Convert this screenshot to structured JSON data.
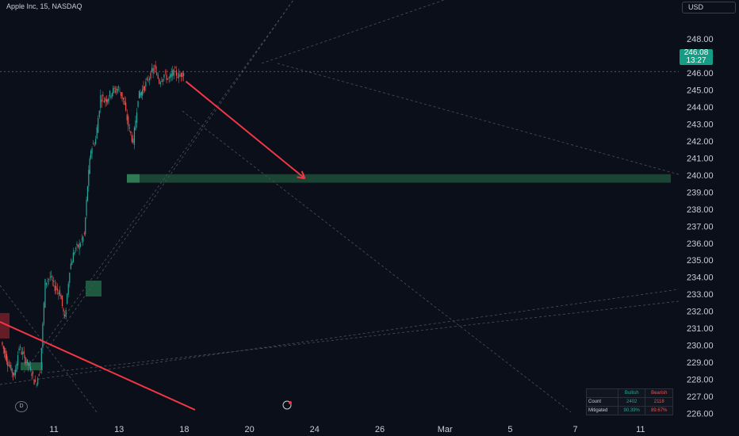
{
  "header": {
    "title": "Apple Inc, 15, NASDAQ",
    "currency": "USD"
  },
  "price_tag": {
    "price": "246.08",
    "countdown": "13:27"
  },
  "stats_table": {
    "headers": [
      "",
      "Bullish",
      "Bearish"
    ],
    "rows": [
      {
        "label": "Count",
        "bullish": "2402",
        "bearish": "2118"
      },
      {
        "label": "Mitigated",
        "bullish": "90.39%",
        "bearish": "89.67%"
      }
    ]
  },
  "toolbar": {
    "d_label": "D"
  },
  "colors": {
    "background": "#0b0f19",
    "bull": "#26a69a",
    "bear": "#ef5350",
    "arrow": "#f23645",
    "zone": "#1e4d3a",
    "price_tag": "#149d84"
  },
  "chart_data": {
    "type": "candlestick",
    "title": "Apple Inc, 15, NASDAQ",
    "y_ticks": [
      "226.00",
      "227.00",
      "228.00",
      "229.00",
      "230.00",
      "231.00",
      "232.00",
      "233.00",
      "234.00",
      "235.00",
      "236.00",
      "237.00",
      "238.00",
      "239.00",
      "240.00",
      "241.00",
      "242.00",
      "243.00",
      "244.00",
      "245.00",
      "246.00",
      "247.00",
      "248.00"
    ],
    "ylim": [
      225.3,
      248.9
    ],
    "x_ticks": [
      "11",
      "13",
      "18",
      "20",
      "24",
      "26",
      "Mar",
      "5",
      "7",
      "11"
    ],
    "x_tick_positions": [
      1.0,
      3.0,
      5.0,
      7.0,
      9.0,
      11.0,
      13.0,
      15.0,
      17.0,
      19.0
    ],
    "current_price": 246.08,
    "price_path": [
      [
        -0.6,
        230.2
      ],
      [
        -0.4,
        229.0
      ],
      [
        -0.2,
        228.2
      ],
      [
        -0.05,
        229.9
      ],
      [
        0.1,
        229.3
      ],
      [
        0.3,
        228.6
      ],
      [
        0.45,
        227.7
      ],
      [
        0.6,
        228.6
      ],
      [
        0.75,
        233.7
      ],
      [
        0.9,
        234.0
      ],
      [
        1.05,
        233.4
      ],
      [
        1.2,
        233.1
      ],
      [
        1.35,
        231.5
      ],
      [
        1.5,
        234.5
      ],
      [
        1.65,
        235.6
      ],
      [
        1.8,
        235.9
      ],
      [
        1.95,
        236.5
      ],
      [
        2.05,
        239.4
      ],
      [
        2.15,
        241.5
      ],
      [
        2.3,
        242.1
      ],
      [
        2.45,
        244.6
      ],
      [
        2.6,
        244.4
      ],
      [
        2.8,
        244.9
      ],
      [
        3.0,
        245.1
      ],
      [
        3.15,
        244.4
      ],
      [
        3.3,
        242.9
      ],
      [
        3.45,
        241.9
      ],
      [
        3.6,
        244.6
      ],
      [
        3.8,
        245.2
      ],
      [
        3.95,
        245.8
      ],
      [
        4.1,
        246.3
      ],
      [
        4.25,
        245.5
      ],
      [
        4.4,
        245.9
      ],
      [
        4.55,
        245.6
      ],
      [
        4.7,
        246.1
      ],
      [
        4.85,
        245.8
      ],
      [
        5.0,
        246.08
      ]
    ],
    "zones": [
      {
        "type": "bullish_ob",
        "y_low": 239.55,
        "y_high": 240.05
      },
      {
        "type": "bearish_ob",
        "y_low": 230.4,
        "y_high": 231.9
      }
    ],
    "arrow": {
      "from": [
        5.05,
        245.5
      ],
      "to": [
        8.7,
        239.8
      ]
    },
    "grid": false,
    "legend": "none"
  }
}
